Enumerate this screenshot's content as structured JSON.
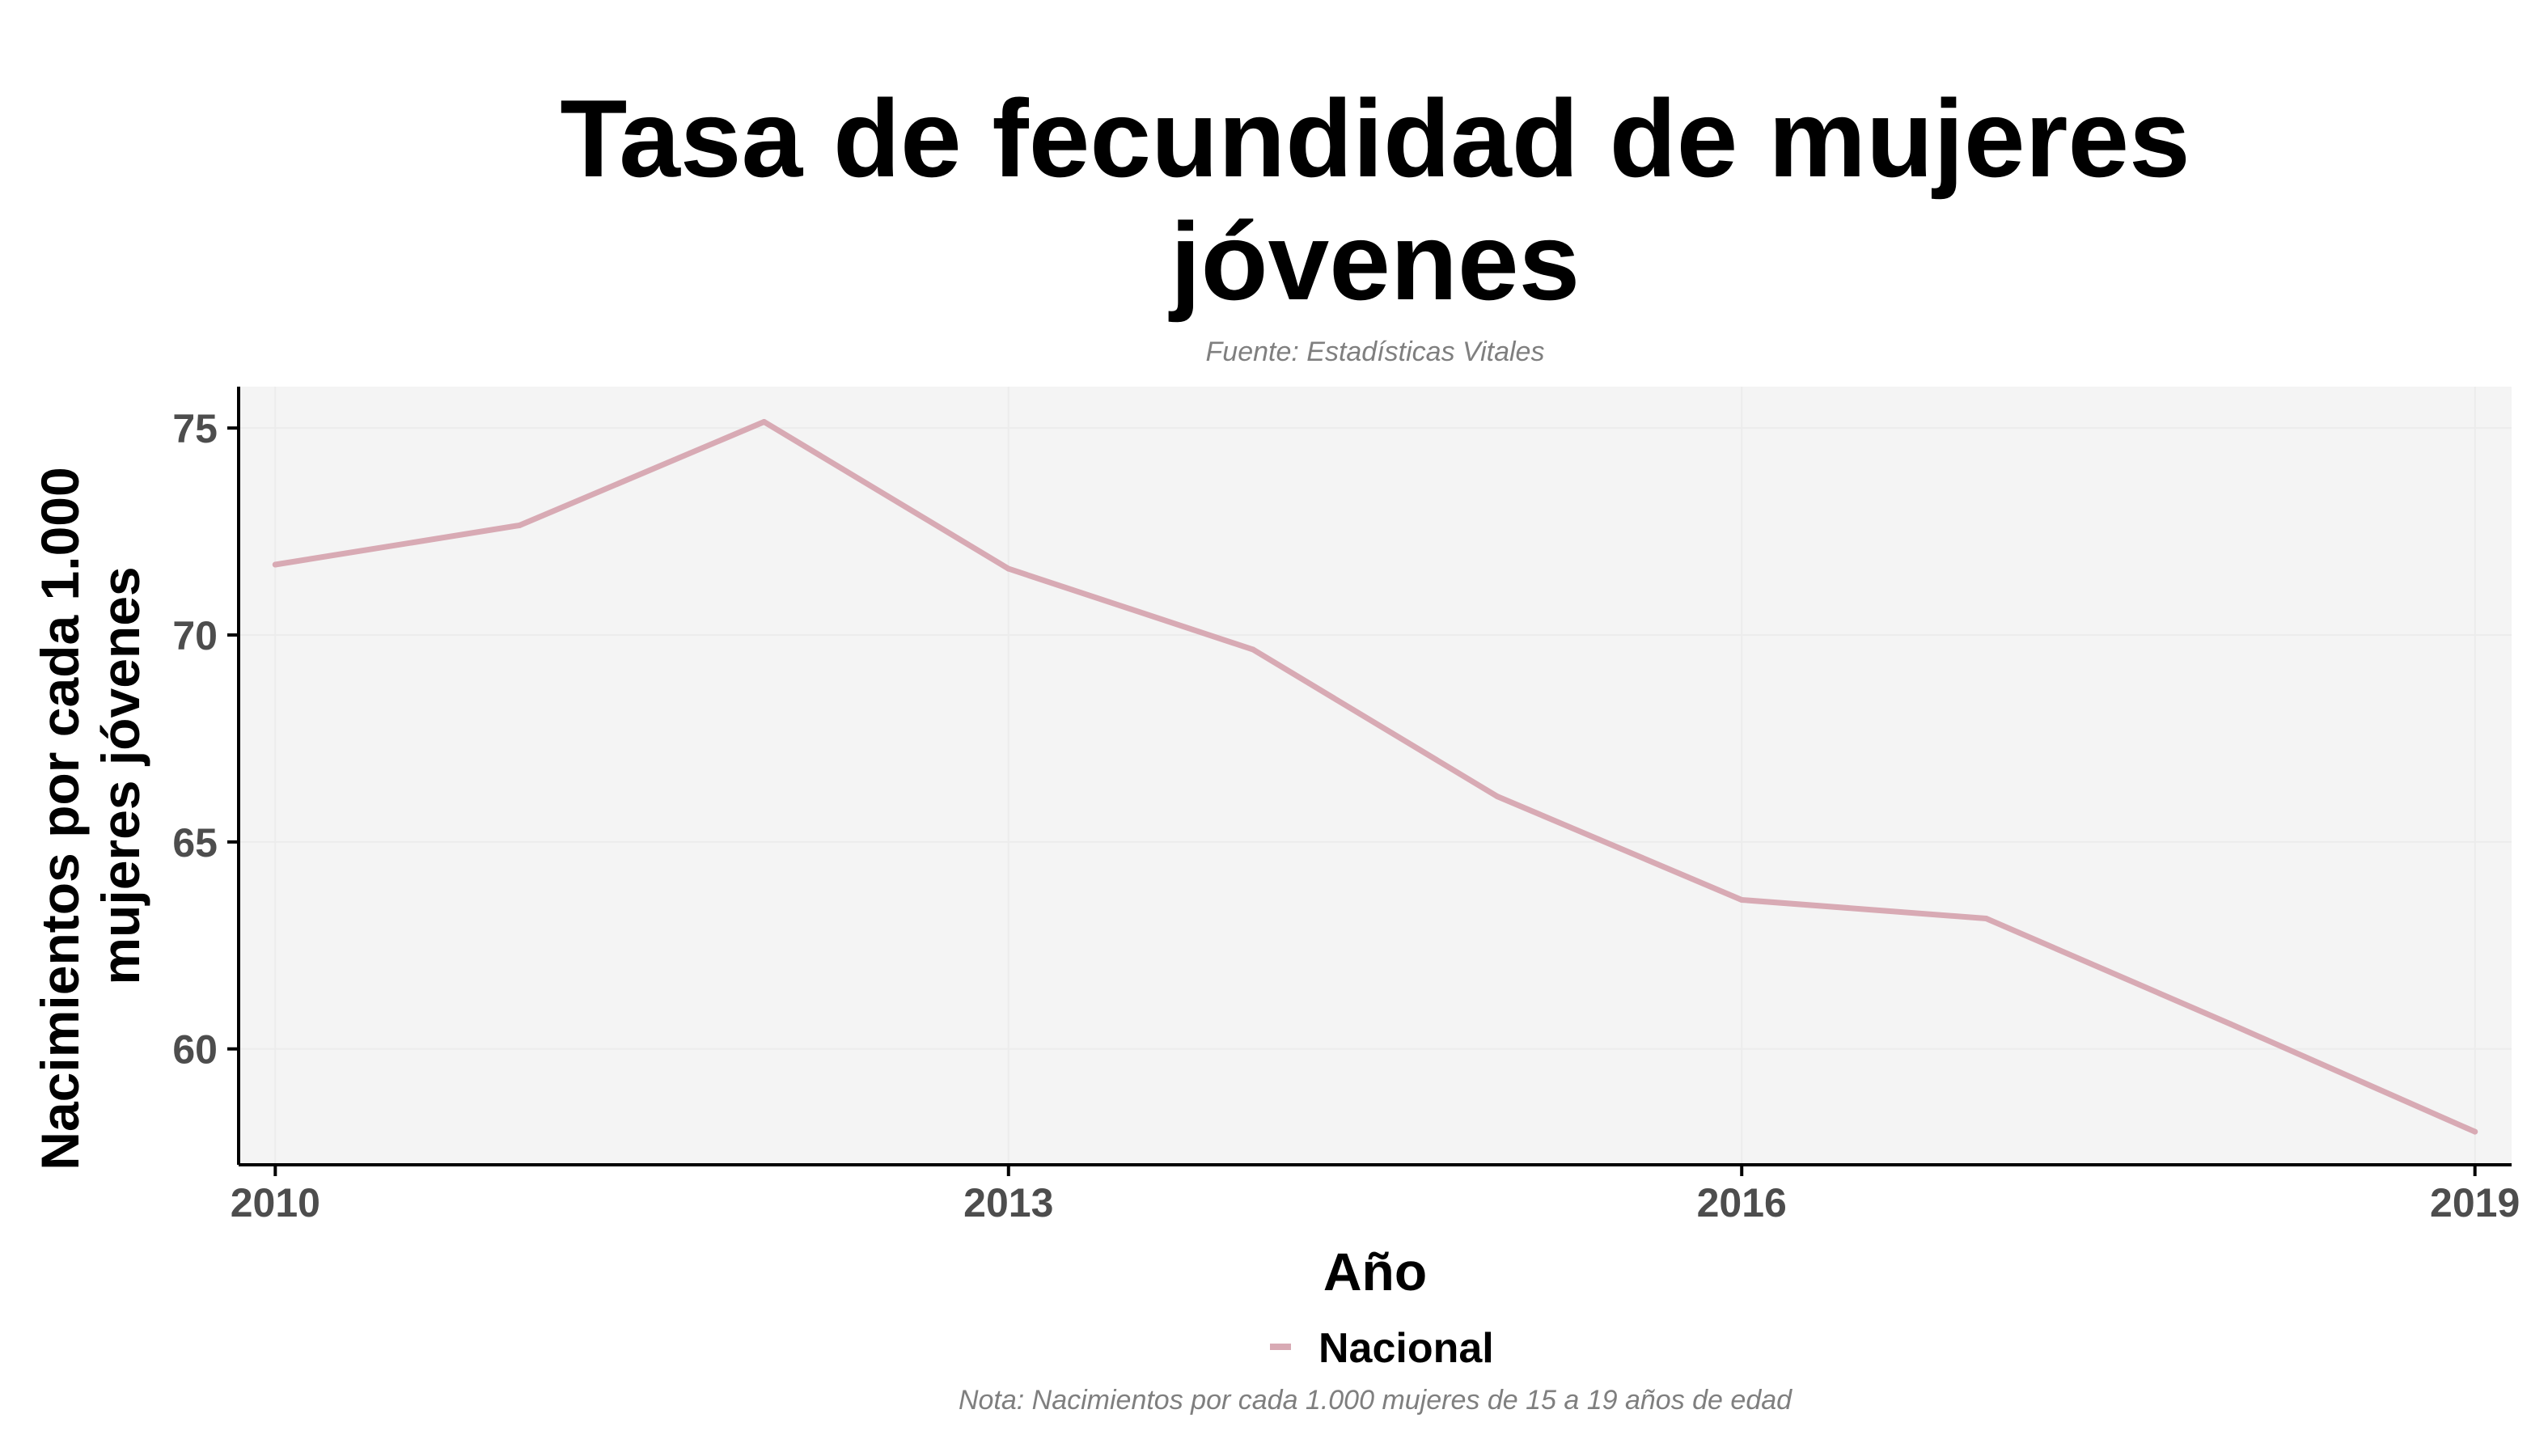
{
  "chart_data": {
    "type": "line",
    "title": [
      "Tasa de fecundidad de mujeres",
      "jóvenes"
    ],
    "subtitle": "Fuente: Estadísticas Vitales",
    "caption": "Nota: Nacimientos por cada 1.000 mujeres de 15 a 19 años de edad",
    "xlabel": "Año",
    "ylabel": [
      "Nacimientos por cada 1.000",
      "mujeres jóvenes"
    ],
    "x": [
      2010,
      2011,
      2012,
      2013,
      2014,
      2015,
      2016,
      2017,
      2018,
      2019
    ],
    "xlim": [
      2009.85,
      2019.15
    ],
    "ylim": [
      57.2,
      76.0
    ],
    "x_ticks": [
      2010,
      2013,
      2016,
      2019
    ],
    "y_ticks": [
      60,
      65,
      70,
      75
    ],
    "grid": true,
    "legend_position": "bottom",
    "series": [
      {
        "name": "Nacional",
        "color": "#d8aab4",
        "values": [
          71.7,
          72.65,
          75.15,
          71.6,
          69.65,
          66.1,
          63.6,
          63.15,
          60.6,
          58.0
        ]
      }
    ],
    "colors": {
      "panel_background": "#f4f4f4",
      "grid": "#ececec",
      "axis_line": "#000000",
      "tick_label": "#4d4d4d",
      "note_text": "#7f7f7f"
    }
  }
}
